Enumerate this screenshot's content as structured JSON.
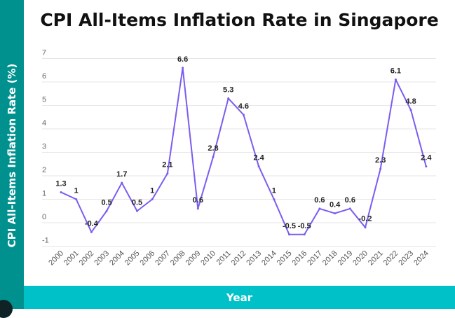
{
  "chart_data": {
    "type": "line",
    "title": "CPI All-Items Inflation Rate in Singapore",
    "xlabel": "Year",
    "ylabel": "CPI All-Items Inflation Rate (%)",
    "ylim": [
      -1,
      7
    ],
    "yticks": [
      -1,
      0,
      1,
      2,
      3,
      4,
      5,
      6,
      7
    ],
    "grid": true,
    "line_color": "#7b5cf0",
    "x": [
      "2000",
      "2001",
      "2002",
      "2003",
      "2004",
      "2005",
      "2006",
      "2007",
      "2008",
      "2009",
      "2010",
      "2011",
      "2012",
      "2013",
      "2014",
      "2015",
      "2016",
      "2017",
      "2018",
      "2019",
      "2020",
      "2021",
      "2022",
      "2023",
      "2024"
    ],
    "values": [
      1.3,
      1,
      -0.4,
      0.5,
      1.7,
      0.5,
      1,
      2.1,
      6.6,
      0.6,
      2.8,
      5.3,
      4.6,
      2.4,
      1,
      -0.5,
      -0.5,
      0.6,
      0.4,
      0.6,
      -0.2,
      2.3,
      6.1,
      4.8,
      2.4
    ]
  }
}
